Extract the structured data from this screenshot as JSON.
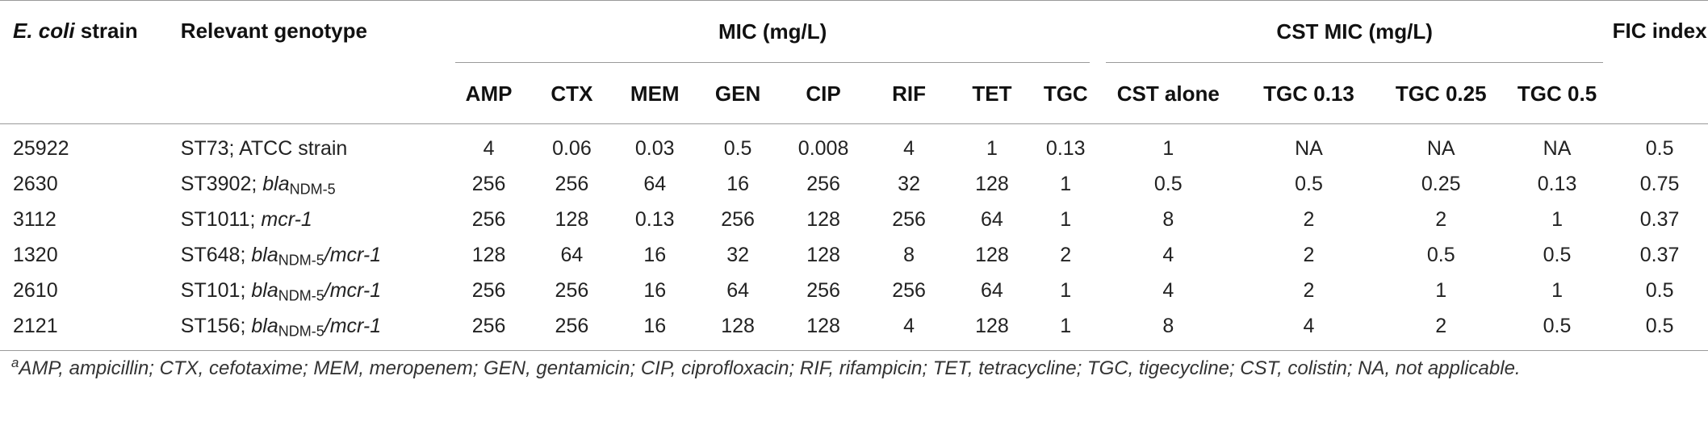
{
  "headers": {
    "strain_italic": "E. coli",
    "strain_rest": " strain",
    "genotype": "Relevant genotype",
    "mic_group": "MIC (mg/L)",
    "cst_group": "CST MIC (mg/L)",
    "fic": "FIC index",
    "mic_cols": [
      "AMP",
      "CTX",
      "MEM",
      "GEN",
      "CIP",
      "RIF",
      "TET",
      "TGC"
    ],
    "cst_cols": [
      "CST alone",
      "TGC 0.13",
      "TGC 0.25",
      "TGC 0.5"
    ]
  },
  "rows": [
    {
      "strain": "25922",
      "st": "ST73; ATCC strain",
      "bla": "",
      "sub": "",
      "sep": "",
      "mcr": "",
      "mic": [
        "4",
        "0.06",
        "0.03",
        "0.5",
        "0.008",
        "4",
        "1",
        "0.13"
      ],
      "cst": [
        "1",
        "NA",
        "NA",
        "NA"
      ],
      "fic": "0.5"
    },
    {
      "strain": "2630",
      "st": "ST3902; ",
      "bla": "bla",
      "sub": "NDM-5",
      "sep": "",
      "mcr": "",
      "mic": [
        "256",
        "256",
        "64",
        "16",
        "256",
        "32",
        "128",
        "1"
      ],
      "cst": [
        "0.5",
        "0.5",
        "0.25",
        "0.13"
      ],
      "fic": "0.75"
    },
    {
      "strain": "3112",
      "st": "ST1011; ",
      "bla": "",
      "sub": "",
      "sep": "",
      "mcr": "mcr-1",
      "mic": [
        "256",
        "128",
        "0.13",
        "256",
        "128",
        "256",
        "64",
        "1"
      ],
      "cst": [
        "8",
        "2",
        "2",
        "1"
      ],
      "fic": "0.37"
    },
    {
      "strain": "1320",
      "st": "ST648; ",
      "bla": "bla",
      "sub": "NDM-5",
      "sep": "/",
      "mcr": "mcr-1",
      "mic": [
        "128",
        "64",
        "16",
        "32",
        "128",
        "8",
        "128",
        "2"
      ],
      "cst": [
        "4",
        "2",
        "0.5",
        "0.5"
      ],
      "fic": "0.37"
    },
    {
      "strain": "2610",
      "st": "ST101; ",
      "bla": "bla",
      "sub": "NDM-5",
      "sep": "/",
      "mcr": "mcr-1",
      "mic": [
        "256",
        "256",
        "16",
        "64",
        "256",
        "256",
        "64",
        "1"
      ],
      "cst": [
        "4",
        "2",
        "1",
        "1"
      ],
      "fic": "0.5"
    },
    {
      "strain": "2121",
      "st": "ST156; ",
      "bla": "bla",
      "sub": "NDM-5",
      "sep": "/",
      "mcr": "mcr-1",
      "mic": [
        "256",
        "256",
        "16",
        "128",
        "128",
        "4",
        "128",
        "1"
      ],
      "cst": [
        "8",
        "4",
        "2",
        "0.5"
      ],
      "fic": "0.5"
    }
  ],
  "footnote": {
    "marker": "a",
    "text": "AMP, ampicillin; CTX, cefotaxime; MEM, meropenem; GEN, gentamicin; CIP, ciprofloxacin; RIF, rifampicin; TET, tetracycline; TGC, tigecycline; CST, colistin; NA, not applicable."
  }
}
